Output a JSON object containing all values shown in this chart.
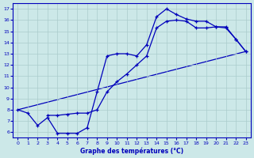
{
  "xlabel": "Graphe des températures (°C)",
  "background_color": "#cce8e8",
  "grid_color": "#aacccc",
  "line_color": "#0000bb",
  "xlim": [
    -0.5,
    23.5
  ],
  "ylim": [
    5.5,
    17.5
  ],
  "xticks": [
    0,
    1,
    2,
    3,
    4,
    5,
    6,
    7,
    8,
    9,
    10,
    11,
    12,
    13,
    14,
    15,
    16,
    17,
    18,
    19,
    20,
    21,
    22,
    23
  ],
  "yticks": [
    6,
    7,
    8,
    9,
    10,
    11,
    12,
    13,
    14,
    15,
    16,
    17
  ],
  "curve1_x": [
    0,
    1,
    2,
    3,
    4,
    5,
    6,
    7,
    8,
    9,
    10,
    11,
    12,
    13,
    14,
    15,
    16,
    17,
    18,
    19,
    20,
    21,
    22,
    23
  ],
  "curve1_y": [
    8.0,
    7.7,
    6.6,
    7.3,
    5.9,
    5.9,
    5.9,
    6.4,
    9.6,
    12.8,
    13.0,
    13.0,
    12.8,
    13.8,
    16.3,
    17.0,
    16.5,
    16.1,
    15.9,
    15.9,
    15.4,
    15.4,
    14.3,
    13.2
  ],
  "curve2_x": [
    3,
    4,
    5,
    6,
    7,
    8,
    9,
    10,
    11,
    12,
    13,
    14,
    15,
    16,
    17,
    18,
    19,
    20,
    21,
    22,
    23
  ],
  "curve2_y": [
    7.5,
    7.5,
    7.6,
    7.7,
    7.7,
    8.0,
    9.6,
    10.5,
    11.2,
    12.0,
    12.8,
    15.3,
    15.9,
    16.0,
    15.9,
    15.3,
    15.3,
    15.4,
    15.3,
    14.3,
    13.2
  ],
  "line3_x": [
    0,
    23
  ],
  "line3_y": [
    8.0,
    13.2
  ],
  "line4_x": [
    0,
    23
  ],
  "line4_y": [
    8.0,
    13.2
  ]
}
